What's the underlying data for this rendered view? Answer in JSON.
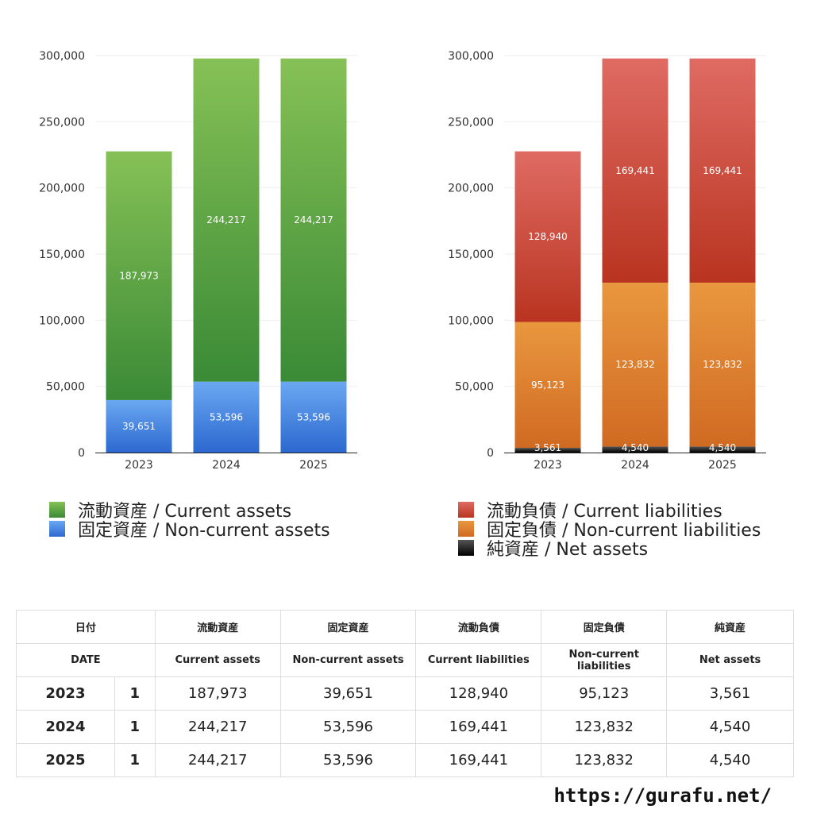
{
  "colors": {
    "current_assets": [
      "#86c156",
      "#3a8a36"
    ],
    "non_current_assets": [
      "#6aa8f2",
      "#2c68cf"
    ],
    "current_liabilities": [
      "#df6b63",
      "#b93420"
    ],
    "non_current_liabilities": [
      "#e9973f",
      "#d06a22"
    ],
    "net_assets": [
      "#555555",
      "#000000"
    ],
    "grid": "#eeeeee"
  },
  "chart_data": [
    {
      "type": "bar",
      "stacked": true,
      "categories": [
        "2023",
        "2024",
        "2025"
      ],
      "ylim": [
        0,
        300000
      ],
      "yticks": [
        "0",
        "50,000",
        "100,000",
        "150,000",
        "200,000",
        "250,000",
        "300,000"
      ],
      "ytick_values": [
        0,
        50000,
        100000,
        150000,
        200000,
        250000,
        300000
      ],
      "grid": true,
      "legend_position": "bottom",
      "series": [
        {
          "key": "non_current_assets",
          "name": "固定資産 / Non-current assets",
          "values": [
            39651,
            53596,
            53596
          ],
          "labels": [
            "39,651",
            "53,596",
            "53,596"
          ]
        },
        {
          "key": "current_assets",
          "name": "流動資産 / Current assets",
          "values": [
            187973,
            244217,
            244217
          ],
          "labels": [
            "187,973",
            "244,217",
            "244,217"
          ]
        }
      ],
      "legend_order": [
        1,
        0
      ]
    },
    {
      "type": "bar",
      "stacked": true,
      "categories": [
        "2023",
        "2024",
        "2025"
      ],
      "ylim": [
        0,
        300000
      ],
      "yticks": [
        "0",
        "50,000",
        "100,000",
        "150,000",
        "200,000",
        "250,000",
        "300,000"
      ],
      "ytick_values": [
        0,
        50000,
        100000,
        150000,
        200000,
        250000,
        300000
      ],
      "grid": true,
      "legend_position": "bottom",
      "series": [
        {
          "key": "net_assets",
          "name": "純資産 / Net assets",
          "values": [
            3561,
            4540,
            4540
          ],
          "labels": [
            "3,561",
            "4,540",
            "4,540"
          ]
        },
        {
          "key": "non_current_liabilities",
          "name": "固定負債 / Non-current liabilities",
          "values": [
            95123,
            123832,
            123832
          ],
          "labels": [
            "95,123",
            "123,832",
            "123,832"
          ]
        },
        {
          "key": "current_liabilities",
          "name": "流動負債 / Current liabilities",
          "values": [
            128940,
            169441,
            169441
          ],
          "labels": [
            "128,940",
            "169,441",
            "169,441"
          ]
        }
      ],
      "legend_order": [
        2,
        1,
        0
      ]
    }
  ],
  "legend_left": [
    {
      "label": "流動資産 / Current assets",
      "color_key": "current_assets"
    },
    {
      "label": "固定資産 / Non-current assets",
      "color_key": "non_current_assets"
    }
  ],
  "legend_right": [
    {
      "label": "流動負債 / Current liabilities",
      "color_key": "current_liabilities"
    },
    {
      "label": "固定負債 / Non-current liabilities",
      "color_key": "non_current_liabilities"
    },
    {
      "label": "純資産 / Net assets",
      "color_key": "net_assets"
    }
  ],
  "table": {
    "header_jp": [
      "日付",
      "流動資産",
      "固定資産",
      "流動負債",
      "固定負債",
      "純資産"
    ],
    "header_en": [
      "DATE",
      "Current assets",
      "Non-current assets",
      "Current liabilities",
      "Non-current liabilities",
      "Net assets"
    ],
    "rows": [
      {
        "year": "2023",
        "count": "1",
        "values": [
          "187,973",
          "39,651",
          "128,940",
          "95,123",
          "3,561"
        ]
      },
      {
        "year": "2024",
        "count": "1",
        "values": [
          "244,217",
          "53,596",
          "169,441",
          "123,832",
          "4,540"
        ]
      },
      {
        "year": "2025",
        "count": "1",
        "values": [
          "244,217",
          "53,596",
          "169,441",
          "123,832",
          "4,540"
        ]
      }
    ]
  },
  "site_url": "https://gurafu.net/"
}
